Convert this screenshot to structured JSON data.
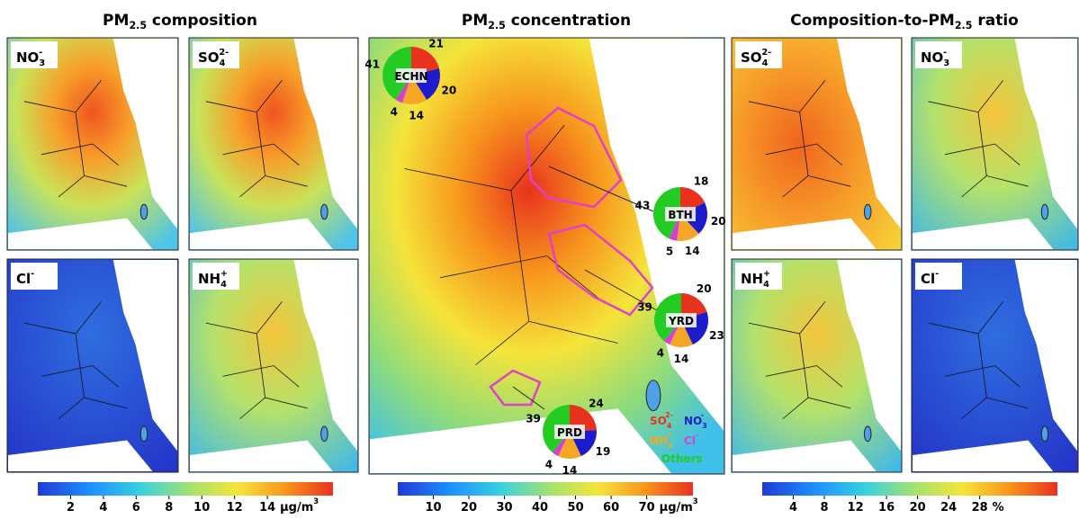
{
  "panels": [
    {
      "title": {
        "base": "PM",
        "sub": "2.5",
        "rest": " composition"
      },
      "maps": [
        {
          "species": {
            "base": "NO",
            "sub": "3",
            "sup": "-"
          }
        },
        {
          "species": {
            "base": "SO",
            "sub": "4",
            "sup": "2-"
          }
        },
        {
          "species": {
            "base": "Cl",
            "sup": "-"
          }
        },
        {
          "species": {
            "base": "NH",
            "sub": "4",
            "sup": "+"
          }
        }
      ],
      "colorbar": {
        "lim": [
          0,
          18
        ],
        "ticks": [
          2,
          4,
          6,
          8,
          10,
          12,
          14
        ],
        "unit": {
          "base": "μg/m",
          "sup": "3"
        }
      }
    },
    {
      "title": {
        "base": "PM",
        "sub": "2.5",
        "rest": " concentration"
      },
      "maps": [
        {}
      ],
      "colorbar": {
        "lim": [
          0,
          83
        ],
        "ticks": [
          10,
          20,
          30,
          40,
          50,
          60,
          70
        ],
        "unit": {
          "base": "μg/m",
          "sup": "3"
        }
      }
    },
    {
      "title": {
        "base": "Composition-to-PM",
        "sub": "2.5",
        "rest": " ratio"
      },
      "maps": [
        {
          "species": {
            "base": "SO",
            "sub": "4",
            "sup": "2-"
          }
        },
        {
          "species": {
            "base": "NO",
            "sub": "3",
            "sup": "-"
          }
        },
        {
          "species": {
            "base": "NH",
            "sub": "4",
            "sup": "+"
          }
        },
        {
          "species": {
            "base": "Cl",
            "sup": "-"
          }
        }
      ],
      "colorbar": {
        "lim": [
          0,
          38
        ],
        "ticks": [
          4,
          8,
          12,
          16,
          20,
          24,
          28
        ],
        "unit": {
          "base": "%"
        }
      }
    }
  ],
  "legend": [
    {
      "base": "SO",
      "sub": "4",
      "sup": "2-",
      "color": "#e8321e"
    },
    {
      "base": "NO",
      "sub": "3",
      "sup": "-",
      "color": "#1c1ccc"
    },
    {
      "base": "NH",
      "sub": "4",
      "sup": "+",
      "color": "#f5a623"
    },
    {
      "base": "Cl",
      "sup": "-",
      "color": "#d63fd6"
    },
    {
      "base": "Others",
      "color": "#22cc22"
    }
  ],
  "pies": [
    {
      "region": "ECHN",
      "values": [
        21,
        20,
        14,
        4,
        41
      ]
    },
    {
      "region": "BTH",
      "values": [
        18,
        20,
        14,
        5,
        43
      ]
    },
    {
      "region": "YRD",
      "values": [
        20,
        23,
        14,
        4,
        39
      ]
    },
    {
      "region": "PRD",
      "values": [
        24,
        19,
        14,
        4,
        39
      ]
    }
  ]
}
